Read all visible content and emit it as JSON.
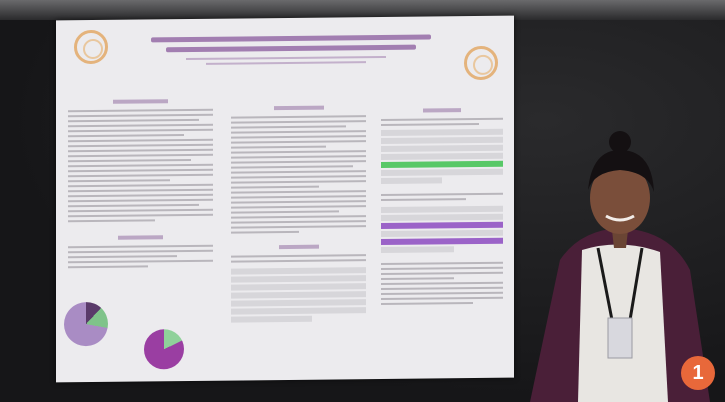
{
  "badge": {
    "number": "1"
  },
  "colors": {
    "poster_bg": "#ecebee",
    "badge_bg": "#e8683a",
    "highlight_green": "#58c867",
    "highlight_purple": "#9b63c8",
    "cardigan": "#4a1f38"
  },
  "icons": [
    "university-seal-icon"
  ]
}
